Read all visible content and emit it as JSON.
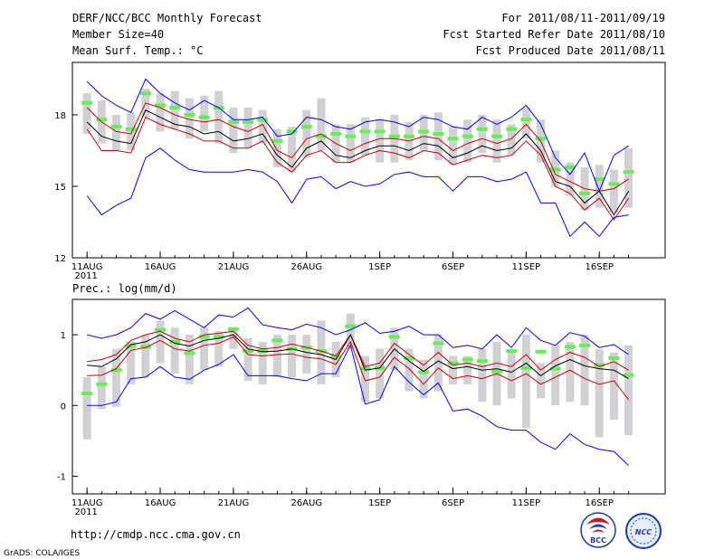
{
  "header": {
    "left": [
      "DERF/NCC/BCC Monthly Forecast",
      "Member Size=40",
      "Mean Surf. Temp.: °C"
    ],
    "right": [
      "For 2011/08/11-2011/09/19",
      "Fcst Started Refer Date 2011/08/10",
      "Fcst Produced Date 2011/08/11"
    ]
  },
  "panel2_title": "Prec.: log(mm/d)",
  "footer": {
    "url": "http://cmdp.ncc.cma.gov.cn",
    "grads": "GrADS: COLA/IGES",
    "logo1": "BCC",
    "logo2": "NCC"
  },
  "colors": {
    "max_min": "#0000ff",
    "spread": "#cc0000",
    "mean": "#000000",
    "box": "#d0d0d5",
    "median": "#66ee55"
  },
  "chart_data": [
    {
      "type": "line",
      "title": "Mean Surf. Temp.: °C",
      "x_ticks": [
        {
          "day": 0,
          "label": "11AUG",
          "sub": "2011"
        },
        {
          "day": 5,
          "label": "16AUG"
        },
        {
          "day": 10,
          "label": "21AUG"
        },
        {
          "day": 15,
          "label": "26AUG"
        },
        {
          "day": 20,
          "label": "1SEP"
        },
        {
          "day": 25,
          "label": "6SEP"
        },
        {
          "day": 30,
          "label": "11SEP"
        },
        {
          "day": 35,
          "label": "16SEP"
        }
      ],
      "y_ticks": [
        12,
        15,
        18
      ],
      "ylim": [
        12,
        20.2
      ],
      "xlim": [
        -1,
        39.5
      ],
      "series": [
        {
          "name": "max",
          "values": [
            19.4,
            18.8,
            18.4,
            18.1,
            19.5,
            18.9,
            18.5,
            18.2,
            18.6,
            18.3,
            17.8,
            17.8,
            17.9,
            17.1,
            17.2,
            17.9,
            17.8,
            17.5,
            17.4,
            17.7,
            17.8,
            17.7,
            17.5,
            17.9,
            17.8,
            17.5,
            17.4,
            17.9,
            17.6,
            17.9,
            18.4,
            17.6,
            16.2,
            15.5,
            16.4,
            14.8,
            16.3,
            16.7
          ]
        },
        {
          "name": "spread_hi",
          "values": [
            18.3,
            17.7,
            17.3,
            17.2,
            18.5,
            18.3,
            18.0,
            17.8,
            17.7,
            17.8,
            17.5,
            17.3,
            17.6,
            16.5,
            16.2,
            17.0,
            17.2,
            16.8,
            16.5,
            16.8,
            17.0,
            17.0,
            16.9,
            17.1,
            17.0,
            16.5,
            16.8,
            17.0,
            16.8,
            17.0,
            17.6,
            16.9,
            15.5,
            15.2,
            14.9,
            14.8,
            14.9,
            15.3
          ]
        },
        {
          "name": "mean",
          "values": [
            17.7,
            17.1,
            16.9,
            16.8,
            18.2,
            17.9,
            17.6,
            17.5,
            17.2,
            17.3,
            16.9,
            17.0,
            17.2,
            16.3,
            15.8,
            16.6,
            16.9,
            16.3,
            16.2,
            16.5,
            16.7,
            16.7,
            16.5,
            16.8,
            16.7,
            16.2,
            16.4,
            16.7,
            16.5,
            16.6,
            17.2,
            16.5,
            15.2,
            15.0,
            14.3,
            14.8,
            13.8,
            14.8
          ]
        },
        {
          "name": "spread_lo",
          "values": [
            17.4,
            16.5,
            16.5,
            16.4,
            17.9,
            17.6,
            17.4,
            17.2,
            16.9,
            16.9,
            16.6,
            16.6,
            16.9,
            16.0,
            15.6,
            16.3,
            16.5,
            16.0,
            16.0,
            16.3,
            16.5,
            16.4,
            16.2,
            16.5,
            16.4,
            15.9,
            16.1,
            16.3,
            16.2,
            16.3,
            16.9,
            16.3,
            15.0,
            14.7,
            14.0,
            14.5,
            13.6,
            14.5
          ]
        },
        {
          "name": "min",
          "values": [
            14.6,
            13.8,
            14.2,
            14.5,
            16.2,
            16.6,
            16.1,
            15.7,
            15.6,
            15.6,
            15.6,
            15.7,
            15.6,
            15.2,
            14.3,
            15.3,
            15.4,
            14.9,
            15.2,
            15.0,
            15.1,
            15.5,
            15.6,
            15.4,
            15.4,
            14.8,
            15.4,
            15.4,
            15.2,
            15.3,
            15.6,
            14.3,
            14.3,
            12.9,
            13.5,
            12.9,
            13.7,
            13.8
          ]
        }
      ],
      "box_hi": [
        18.9,
        18.6,
        18.0,
        18.1,
        19.1,
        18.9,
        19.0,
        18.7,
        18.8,
        19.0,
        18.3,
        18.3,
        18.2,
        17.4,
        17.5,
        18.2,
        18.7,
        17.6,
        17.6,
        17.9,
        17.8,
        18.0,
        17.7,
        18.0,
        18.1,
        17.5,
        17.8,
        18.0,
        17.8,
        17.6,
        18.3,
        17.8,
        16.5,
        16.0,
        15.8,
        15.9,
        15.7,
        16.6
      ],
      "box_lo": [
        17.2,
        16.8,
        16.5,
        16.5,
        17.9,
        17.3,
        17.4,
        17.0,
        17.3,
        16.8,
        16.4,
        16.6,
        16.8,
        15.8,
        15.6,
        16.2,
        16.5,
        16.0,
        16.0,
        16.3,
        16.0,
        16.0,
        16.1,
        16.5,
        16.1,
        15.9,
        16.0,
        16.4,
        16.0,
        16.3,
        17.0,
        16.0,
        15.0,
        14.6,
        14.0,
        14.1,
        13.9,
        14.1
      ],
      "median": [
        18.5,
        17.8,
        17.5,
        17.4,
        18.9,
        18.4,
        18.3,
        18.0,
        17.9,
        18.3,
        17.7,
        17.7,
        17.8,
        16.9,
        17.3,
        17.5,
        17.1,
        17.2,
        17.1,
        17.3,
        17.3,
        17.1,
        17.1,
        17.3,
        17.2,
        17.0,
        17.1,
        17.4,
        17.1,
        17.4,
        17.8,
        17.0,
        15.7,
        15.8,
        14.7,
        15.3,
        15.1,
        15.6
      ]
    },
    {
      "type": "line",
      "title": "Prec.: log(mm/d)",
      "x_ticks": [
        {
          "day": 0,
          "label": "11AUG",
          "sub": "2011"
        },
        {
          "day": 5,
          "label": "16AUG"
        },
        {
          "day": 10,
          "label": "21AUG"
        },
        {
          "day": 15,
          "label": "26AUG"
        },
        {
          "day": 20,
          "label": "1SEP"
        },
        {
          "day": 25,
          "label": "6SEP"
        },
        {
          "day": 30,
          "label": "11SEP"
        },
        {
          "day": 35,
          "label": "16SEP"
        }
      ],
      "y_ticks": [
        -1,
        0,
        1
      ],
      "ylim": [
        -1.25,
        1.5
      ],
      "xlim": [
        -1,
        39.5
      ],
      "series": [
        {
          "name": "max",
          "values": [
            1.0,
            0.95,
            1.0,
            1.1,
            1.3,
            1.22,
            1.34,
            1.22,
            1.1,
            1.28,
            1.25,
            1.38,
            1.14,
            1.1,
            1.07,
            1.15,
            1.1,
            1.0,
            1.07,
            1.17,
            1.02,
            1.05,
            1.12,
            1.0,
            1.0,
            0.82,
            0.85,
            0.8,
            1.0,
            0.82,
            1.1,
            0.92,
            0.85,
            1.03,
            0.98,
            0.82,
            0.86,
            0.72
          ]
        },
        {
          "name": "spread_hi",
          "values": [
            0.62,
            0.65,
            0.72,
            0.92,
            1.0,
            1.05,
            0.95,
            0.9,
            1.0,
            1.02,
            1.05,
            0.85,
            0.8,
            0.82,
            0.87,
            0.82,
            0.77,
            0.7,
            1.0,
            0.55,
            0.6,
            0.88,
            0.72,
            0.57,
            0.75,
            0.57,
            0.6,
            0.55,
            0.6,
            0.55,
            0.72,
            0.5,
            0.65,
            0.75,
            0.68,
            0.55,
            0.62,
            0.5
          ]
        },
        {
          "name": "mean",
          "values": [
            0.57,
            0.55,
            0.66,
            0.86,
            0.9,
            1.0,
            0.88,
            0.84,
            0.92,
            0.95,
            1.0,
            0.8,
            0.76,
            0.77,
            0.8,
            0.75,
            0.72,
            0.65,
            1.0,
            0.5,
            0.53,
            0.8,
            0.63,
            0.48,
            0.63,
            0.52,
            0.55,
            0.5,
            0.52,
            0.47,
            0.6,
            0.42,
            0.56,
            0.65,
            0.56,
            0.52,
            0.5,
            0.38
          ]
        },
        {
          "name": "spread_lo",
          "values": [
            0.42,
            0.43,
            0.52,
            0.78,
            0.82,
            0.92,
            0.8,
            0.77,
            0.85,
            0.88,
            0.97,
            0.72,
            0.7,
            0.72,
            0.73,
            0.68,
            0.66,
            0.58,
            0.9,
            0.35,
            0.4,
            0.68,
            0.52,
            0.3,
            0.53,
            0.38,
            0.42,
            0.38,
            0.45,
            0.35,
            0.45,
            0.3,
            0.4,
            0.5,
            0.38,
            0.3,
            0.35,
            0.08
          ]
        },
        {
          "name": "min",
          "values": [
            0.0,
            0.0,
            0.05,
            0.38,
            0.4,
            0.55,
            0.4,
            0.37,
            0.5,
            0.58,
            0.72,
            0.42,
            0.42,
            0.42,
            0.38,
            0.35,
            0.45,
            0.45,
            0.85,
            0.02,
            0.08,
            0.55,
            0.33,
            0.15,
            0.32,
            -0.08,
            -0.05,
            -0.15,
            -0.3,
            -0.35,
            -0.35,
            -0.52,
            -0.62,
            -0.4,
            -0.55,
            -0.62,
            -0.65,
            -0.85
          ]
        }
      ],
      "box_hi": [
        0.4,
        0.55,
        0.8,
        0.9,
        1.0,
        1.2,
        1.1,
        1.0,
        1.1,
        1.05,
        1.1,
        0.95,
        0.9,
        1.0,
        1.0,
        1.0,
        1.2,
        0.9,
        1.3,
        0.7,
        0.8,
        1.1,
        0.8,
        0.65,
        1.0,
        0.7,
        0.7,
        0.8,
        0.9,
        0.8,
        1.0,
        0.6,
        0.85,
        0.9,
        1.0,
        0.8,
        0.75,
        0.85
      ],
      "box_lo": [
        -0.48,
        -0.05,
        -0.02,
        0.3,
        0.4,
        0.6,
        0.45,
        0.3,
        0.5,
        0.55,
        0.8,
        0.35,
        0.3,
        0.4,
        0.4,
        0.45,
        0.3,
        0.4,
        0.8,
        0.05,
        0.1,
        0.5,
        0.2,
        0.1,
        0.2,
        0.3,
        0.3,
        0.05,
        0.0,
        0.1,
        -0.32,
        0.1,
        0.0,
        0.05,
        0.0,
        -0.45,
        -0.2,
        -0.42
      ],
      "median": [
        0.17,
        0.3,
        0.5,
        0.84,
        0.83,
        1.07,
        0.9,
        0.74,
        0.97,
        0.97,
        1.08,
        0.77,
        0.77,
        0.92,
        0.8,
        0.82,
        0.77,
        0.69,
        1.12,
        0.52,
        0.53,
        0.97,
        0.67,
        0.47,
        0.88,
        0.6,
        0.65,
        0.63,
        0.48,
        0.77,
        0.53,
        0.76,
        0.52,
        0.83,
        0.85,
        0.57,
        0.67,
        0.43
      ]
    }
  ]
}
